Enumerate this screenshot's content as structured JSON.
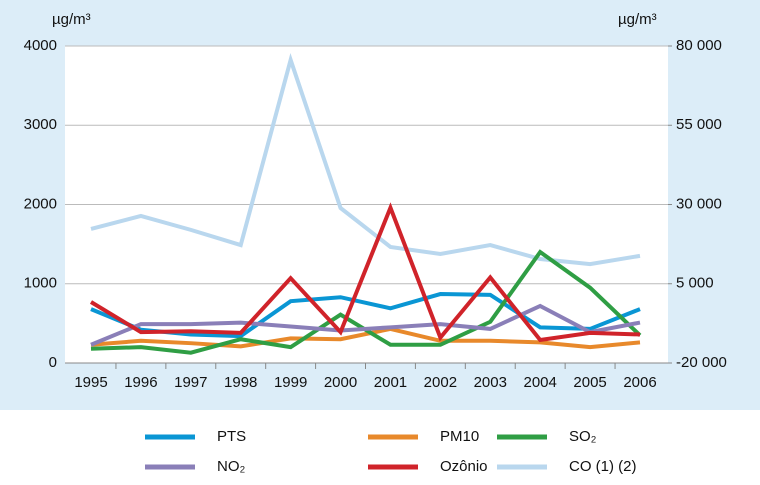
{
  "chart_data": {
    "type": "line",
    "y_unit": "µg/m³",
    "y2_unit": "µg/m³",
    "categories": [
      "1995",
      "1996",
      "1997",
      "1998",
      "1999",
      "2000",
      "2001",
      "2002",
      "2003",
      "2004",
      "2005",
      "2006"
    ],
    "ylim": [
      0,
      4000
    ],
    "yticks": [
      0,
      1000,
      2000,
      3000,
      4000
    ],
    "y2lim": [
      -20000,
      80000
    ],
    "y2ticks": [
      {
        "value": -20000,
        "label": "-20 000"
      },
      {
        "value": 5000,
        "label": "5 000"
      },
      {
        "value": 30000,
        "label": "30 000"
      },
      {
        "value": 55000,
        "label": "55 000"
      },
      {
        "value": 80000,
        "label": "80 000"
      }
    ],
    "grid": true,
    "series": [
      {
        "name": "PTS",
        "color": "#0a96d4",
        "values": [
          680,
          420,
          360,
          340,
          780,
          830,
          690,
          870,
          860,
          450,
          430,
          680
        ]
      },
      {
        "name": "PM10",
        "color": "#e8892b",
        "values": [
          230,
          280,
          250,
          210,
          310,
          300,
          430,
          280,
          280,
          260,
          200,
          260
        ]
      },
      {
        "name": "SO₂",
        "color": "#2f9e44",
        "values": [
          180,
          200,
          130,
          300,
          200,
          610,
          230,
          230,
          520,
          1400,
          950,
          350
        ]
      },
      {
        "name": "NO₂",
        "color": "#8a7fb8",
        "values": [
          230,
          490,
          490,
          510,
          460,
          410,
          450,
          490,
          430,
          720,
          390,
          510
        ]
      },
      {
        "name": "Ozônio",
        "color": "#d0232a",
        "values": [
          770,
          390,
          400,
          380,
          1070,
          390,
          1960,
          320,
          1080,
          290,
          380,
          360
        ]
      },
      {
        "name": "CO (1) (2)",
        "color": "#b9d7ee",
        "axis": "y2",
        "values": [
          22300,
          26400,
          22000,
          17200,
          75600,
          28900,
          16600,
          14400,
          17200,
          12800,
          11200,
          13800
        ]
      }
    ]
  }
}
